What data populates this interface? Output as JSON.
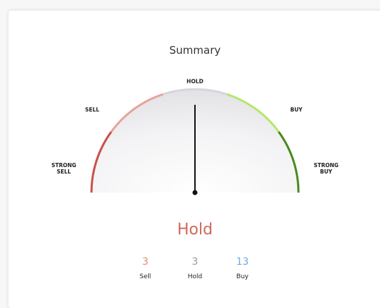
{
  "title": "Summary",
  "gauge": {
    "labels": [
      "STRONG SELL",
      "SELL",
      "HOLD",
      "BUY",
      "STRONG BUY"
    ]
  },
  "result": "Hold",
  "counts": [
    {
      "value": "3",
      "label": "Sell"
    },
    {
      "value": "3",
      "label": "Hold"
    },
    {
      "value": "13",
      "label": "Buy"
    }
  ]
}
